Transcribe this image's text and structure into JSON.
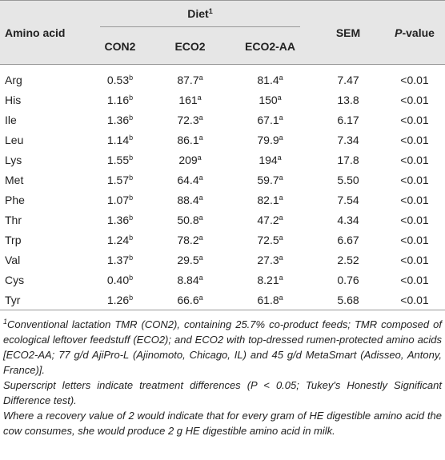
{
  "table": {
    "header": {
      "amino_acid": "Amino acid",
      "diet": {
        "text": "Diet",
        "sup": "1"
      },
      "groups": [
        "CON2",
        "ECO2",
        "ECO2-AA"
      ],
      "sem": "SEM",
      "p_value": {
        "italic": "P",
        "text": "-value"
      }
    },
    "rows": [
      {
        "name": "Arg",
        "cells": [
          {
            "value": "0.53",
            "sup": "b"
          },
          {
            "value": "87.7",
            "sup": "a"
          },
          {
            "value": "81.4",
            "sup": "a"
          }
        ],
        "sem": "7.47",
        "p": "<0.01"
      },
      {
        "name": "His",
        "cells": [
          {
            "value": "1.16",
            "sup": "b"
          },
          {
            "value": "161",
            "sup": "a"
          },
          {
            "value": "150",
            "sup": "a"
          }
        ],
        "sem": "13.8",
        "p": "<0.01"
      },
      {
        "name": "Ile",
        "cells": [
          {
            "value": "1.36",
            "sup": "b"
          },
          {
            "value": "72.3",
            "sup": "a"
          },
          {
            "value": "67.1",
            "sup": "a"
          }
        ],
        "sem": "6.17",
        "p": "<0.01"
      },
      {
        "name": "Leu",
        "cells": [
          {
            "value": "1.14",
            "sup": "b"
          },
          {
            "value": "86.1",
            "sup": "a"
          },
          {
            "value": "79.9",
            "sup": "a"
          }
        ],
        "sem": "7.34",
        "p": "<0.01"
      },
      {
        "name": "Lys",
        "cells": [
          {
            "value": "1.55",
            "sup": "b"
          },
          {
            "value": "209",
            "sup": "a"
          },
          {
            "value": "194",
            "sup": "a"
          }
        ],
        "sem": "17.8",
        "p": "<0.01"
      },
      {
        "name": "Met",
        "cells": [
          {
            "value": "1.57",
            "sup": "b"
          },
          {
            "value": "64.4",
            "sup": "a"
          },
          {
            "value": "59.7",
            "sup": "a"
          }
        ],
        "sem": "5.50",
        "p": "<0.01"
      },
      {
        "name": "Phe",
        "cells": [
          {
            "value": "1.07",
            "sup": "b"
          },
          {
            "value": "88.4",
            "sup": "a"
          },
          {
            "value": "82.1",
            "sup": "a"
          }
        ],
        "sem": "7.54",
        "p": "<0.01"
      },
      {
        "name": "Thr",
        "cells": [
          {
            "value": "1.36",
            "sup": "b"
          },
          {
            "value": "50.8",
            "sup": "a"
          },
          {
            "value": "47.2",
            "sup": "a"
          }
        ],
        "sem": "4.34",
        "p": "<0.01"
      },
      {
        "name": "Trp",
        "cells": [
          {
            "value": "1.24",
            "sup": "b"
          },
          {
            "value": "78.2",
            "sup": "a"
          },
          {
            "value": "72.5",
            "sup": "a"
          }
        ],
        "sem": "6.67",
        "p": "<0.01"
      },
      {
        "name": "Val",
        "cells": [
          {
            "value": "1.37",
            "sup": "b"
          },
          {
            "value": "29.5",
            "sup": "a"
          },
          {
            "value": "27.3",
            "sup": "a"
          }
        ],
        "sem": "2.52",
        "p": "<0.01"
      },
      {
        "name": "Cys",
        "cells": [
          {
            "value": "0.40",
            "sup": "b"
          },
          {
            "value": "8.84",
            "sup": "a"
          },
          {
            "value": "8.21",
            "sup": "a"
          }
        ],
        "sem": "0.76",
        "p": "<0.01"
      },
      {
        "name": "Tyr",
        "cells": [
          {
            "value": "1.26",
            "sup": "b"
          },
          {
            "value": "66.6",
            "sup": "a"
          },
          {
            "value": "61.8",
            "sup": "a"
          }
        ],
        "sem": "5.68",
        "p": "<0.01"
      }
    ]
  },
  "footnotes": [
    {
      "sup": "1",
      "text": "Conventional lactation TMR (CON2), containing 25.7% co-product feeds; TMR composed of ecological leftover feedstuff (ECO2); and ECO2 with top-dressed rumen-protected amino acids [ECO2-AA; 77 g/d AjiPro-L (Ajinomoto, Chicago, IL) and 45 g/d MetaSmart (Adisseo, Antony, France)]."
    },
    {
      "text": "Superscript letters indicate treatment differences (P < 0.05; Tukey's Honestly Significant Difference test)."
    },
    {
      "text": "Where a recovery value of 2 would indicate that for every gram of HE digestible amino acid the cow consumes, she would produce 2 g HE digestible amino acid in milk."
    }
  ]
}
